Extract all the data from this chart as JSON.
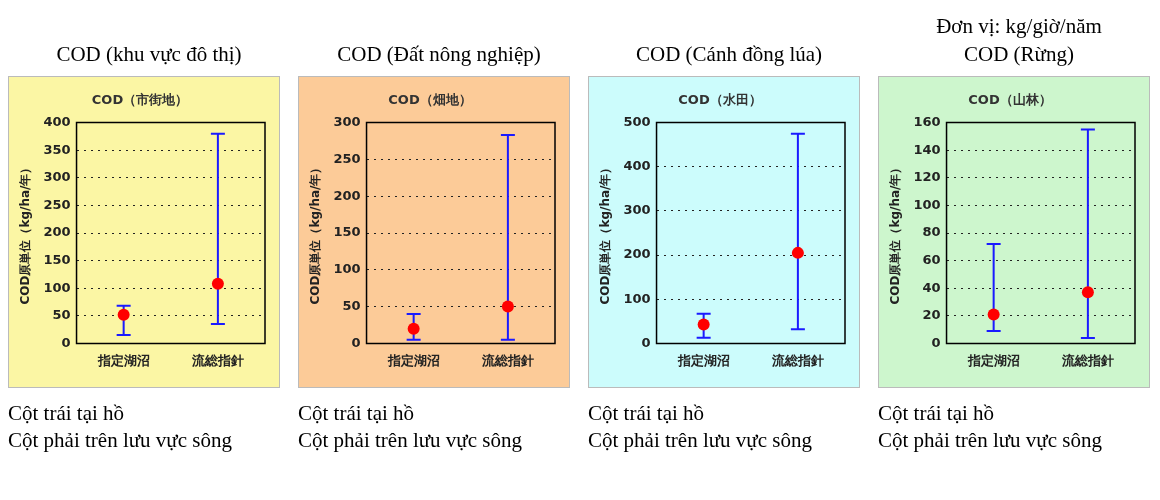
{
  "chart_data": [
    {
      "type": "scatter",
      "title": "COD (khu vực đô thị)",
      "subtitle": "COD（市街地）",
      "ylabel": "COD原単位（kg/ha/年）",
      "categories": [
        "指定湖沼",
        "流総指針"
      ],
      "values": [
        52,
        108
      ],
      "errors": [
        [
          15,
          68
        ],
        [
          35,
          380
        ]
      ],
      "color": "#ff0000",
      "ylim": [
        0,
        400
      ],
      "yticks": [
        0,
        50,
        100,
        150,
        200,
        250,
        300,
        350,
        400
      ],
      "grid": "y",
      "marker": "circle",
      "legend": false,
      "annotations": [
        "Cột trái tại hồ",
        "Cột phải trên lưu vực sông"
      ]
    },
    {
      "type": "scatter",
      "title": "COD (Đất nông nghiệp)",
      "subtitle": "COD（畑地）",
      "ylabel": "COD原単位（kg/ha/年）",
      "categories": [
        "指定湖沼",
        "流総指針"
      ],
      "values": [
        20,
        50
      ],
      "errors": [
        [
          5,
          40
        ],
        [
          5,
          283
        ]
      ],
      "color": "#ff0000",
      "ylim": [
        0,
        300
      ],
      "yticks": [
        0,
        50,
        100,
        150,
        200,
        250,
        300
      ],
      "grid": "y",
      "marker": "circle",
      "legend": false,
      "annotations": [
        "Cột trái tại hồ",
        "Cột phải trên lưu vực sông"
      ]
    },
    {
      "type": "scatter",
      "title": "COD (Cánh đồng lúa)",
      "subtitle": "COD（水田）",
      "ylabel": "COD原単位（kg/ha/年）",
      "categories": [
        "指定湖沼",
        "流総指針"
      ],
      "values": [
        43,
        205
      ],
      "errors": [
        [
          13,
          67
        ],
        [
          32,
          475
        ]
      ],
      "color": "#ff0000",
      "ylim": [
        0,
        500
      ],
      "yticks": [
        0,
        100,
        200,
        300,
        400,
        500
      ],
      "grid": "y",
      "marker": "circle",
      "legend": false,
      "annotations": [
        "Cột trái tại hồ",
        "Cột phải trên lưu vực sông"
      ]
    },
    {
      "type": "scatter",
      "title": "Đơn vị: kg/giờ/năm\nCOD (Rừng)",
      "subtitle": "COD（山林）",
      "ylabel": "COD原単位（kg/ha/年）",
      "categories": [
        "指定湖沼",
        "流総指針"
      ],
      "values": [
        21,
        37
      ],
      "errors": [
        [
          9,
          72
        ],
        [
          4,
          155
        ]
      ],
      "color": "#ff0000",
      "ylim": [
        0,
        160
      ],
      "yticks": [
        0,
        20,
        40,
        60,
        80,
        100,
        120,
        140,
        160
      ],
      "grid": "y",
      "marker": "circle",
      "legend": false,
      "annotations": [
        "Cột trái tại hồ",
        "Cột phải trên lưu vực sông"
      ]
    }
  ]
}
